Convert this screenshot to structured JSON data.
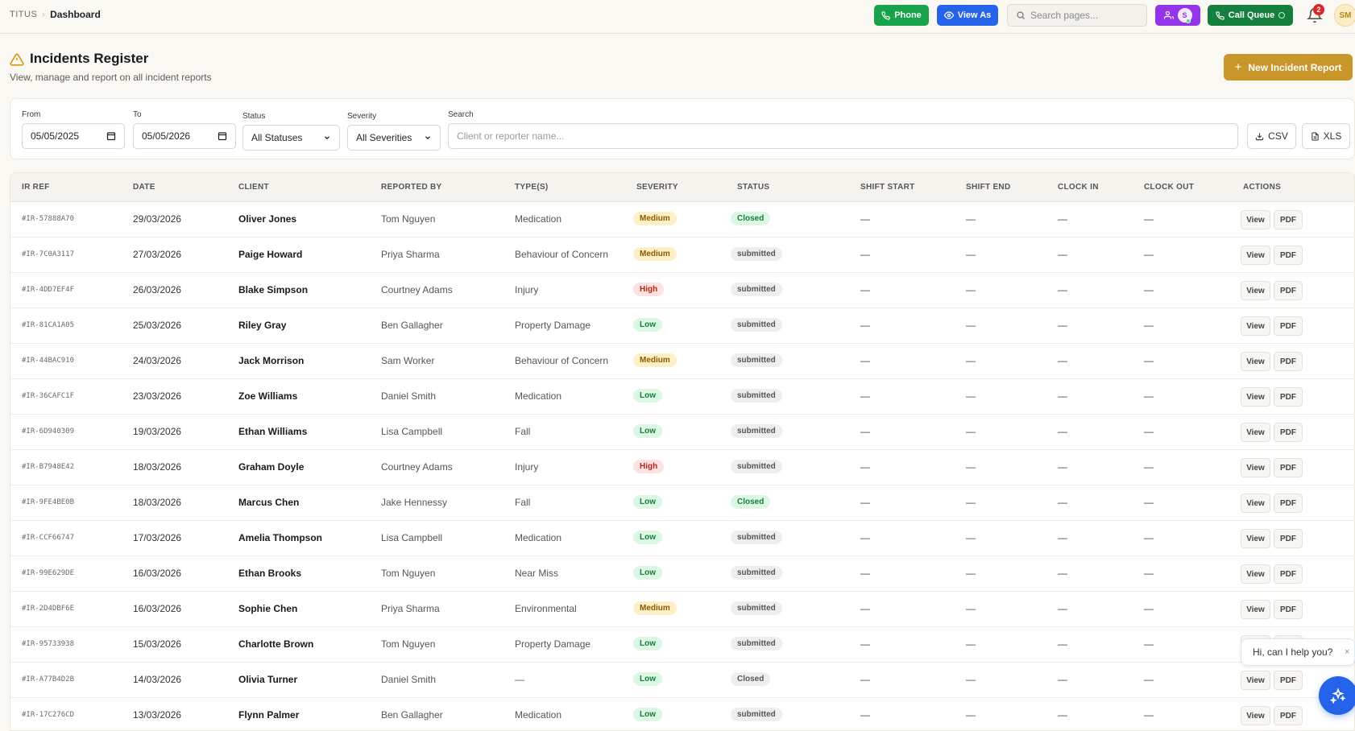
{
  "breadcrumb": {
    "root": "TITUS",
    "current": "Dashboard"
  },
  "topbar": {
    "phone_label": "Phone",
    "view_as_label": "View As",
    "search_placeholder": "Search pages...",
    "users_avatar_initial": "S",
    "call_queue_label": "Call Queue",
    "notification_count": "2",
    "user_initials": "SM"
  },
  "page": {
    "title": "Incidents Register",
    "subtitle": "View, manage and report on all incident reports",
    "new_button_label": "New Incident Report"
  },
  "filters": {
    "from_label": "From",
    "from_value": "05/05/2025",
    "to_label": "To",
    "to_value": "05/05/2026",
    "status_label": "Status",
    "status_value": "All Statuses",
    "severity_label": "Severity",
    "severity_value": "All Severities",
    "search_label": "Search",
    "search_placeholder": "Client or reporter name...",
    "csv_label": "CSV",
    "xls_label": "XLS"
  },
  "table": {
    "headers": [
      "IR REF",
      "DATE",
      "CLIENT",
      "REPORTED BY",
      "TYPE(S)",
      "SEVERITY",
      "STATUS",
      "SHIFT START",
      "SHIFT END",
      "CLOCK IN",
      "CLOCK OUT",
      "ACTIONS"
    ],
    "empty_value": "—",
    "view_label": "View",
    "pdf_label": "PDF",
    "rows": [
      {
        "ref": "#IR-57888A70",
        "date": "29/03/2026",
        "client": "Oliver Jones",
        "reporter": "Tom Nguyen",
        "type": "Medication",
        "severity": "Medium",
        "status": "Closed",
        "status_style": "Closed"
      },
      {
        "ref": "#IR-7C0A3117",
        "date": "27/03/2026",
        "client": "Paige Howard",
        "reporter": "Priya Sharma",
        "type": "Behaviour of Concern",
        "severity": "Medium",
        "status": "submitted",
        "status_style": "submitted"
      },
      {
        "ref": "#IR-4DD7EF4F",
        "date": "26/03/2026",
        "client": "Blake Simpson",
        "reporter": "Courtney Adams",
        "type": "Injury",
        "severity": "High",
        "status": "submitted",
        "status_style": "submitted"
      },
      {
        "ref": "#IR-81CA1A05",
        "date": "25/03/2026",
        "client": "Riley Gray",
        "reporter": "Ben Gallagher",
        "type": "Property Damage",
        "severity": "Low",
        "status": "submitted",
        "status_style": "submitted"
      },
      {
        "ref": "#IR-44BAC910",
        "date": "24/03/2026",
        "client": "Jack Morrison",
        "reporter": "Sam Worker",
        "type": "Behaviour of Concern",
        "severity": "Medium",
        "status": "submitted",
        "status_style": "submitted"
      },
      {
        "ref": "#IR-36CAFC1F",
        "date": "23/03/2026",
        "client": "Zoe Williams",
        "reporter": "Daniel Smith",
        "type": "Medication",
        "severity": "Low",
        "status": "submitted",
        "status_style": "submitted"
      },
      {
        "ref": "#IR-6D940309",
        "date": "19/03/2026",
        "client": "Ethan Williams",
        "reporter": "Lisa Campbell",
        "type": "Fall",
        "severity": "Low",
        "status": "submitted",
        "status_style": "submitted"
      },
      {
        "ref": "#IR-B7948E42",
        "date": "18/03/2026",
        "client": "Graham Doyle",
        "reporter": "Courtney Adams",
        "type": "Injury",
        "severity": "High",
        "status": "submitted",
        "status_style": "submitted"
      },
      {
        "ref": "#IR-9FE4BE0B",
        "date": "18/03/2026",
        "client": "Marcus Chen",
        "reporter": "Jake Hennessy",
        "type": "Fall",
        "severity": "Low",
        "status": "Closed",
        "status_style": "Closed"
      },
      {
        "ref": "#IR-CCF66747",
        "date": "17/03/2026",
        "client": "Amelia Thompson",
        "reporter": "Lisa Campbell",
        "type": "Medication",
        "severity": "Low",
        "status": "submitted",
        "status_style": "submitted"
      },
      {
        "ref": "#IR-99E629DE",
        "date": "16/03/2026",
        "client": "Ethan Brooks",
        "reporter": "Tom Nguyen",
        "type": "Near Miss",
        "severity": "Low",
        "status": "submitted",
        "status_style": "submitted"
      },
      {
        "ref": "#IR-2D4DBF6E",
        "date": "16/03/2026",
        "client": "Sophie Chen",
        "reporter": "Priya Sharma",
        "type": "Environmental",
        "severity": "Medium",
        "status": "submitted",
        "status_style": "submitted"
      },
      {
        "ref": "#IR-95733938",
        "date": "15/03/2026",
        "client": "Charlotte Brown",
        "reporter": "Tom Nguyen",
        "type": "Property Damage",
        "severity": "Low",
        "status": "submitted",
        "status_style": "submitted"
      },
      {
        "ref": "#IR-A77B4D2B",
        "date": "14/03/2026",
        "client": "Olivia Turner",
        "reporter": "Daniel Smith",
        "type": "—",
        "severity": "Low",
        "status": "Closed",
        "status_style": "ClosedGrey"
      },
      {
        "ref": "#IR-17C276CD",
        "date": "13/03/2026",
        "client": "Flynn Palmer",
        "reporter": "Ben Gallagher",
        "type": "Medication",
        "severity": "Low",
        "status": "submitted",
        "status_style": "submitted"
      }
    ]
  },
  "chat": {
    "prompt": "Hi, can I help you?",
    "close_glyph": "×"
  },
  "colors": {
    "accent": "#c9962a",
    "phone": "#16a34a",
    "view_as": "#2563eb",
    "users": "#9333ea",
    "call_queue": "#15803d",
    "chat": "#2563eb"
  }
}
